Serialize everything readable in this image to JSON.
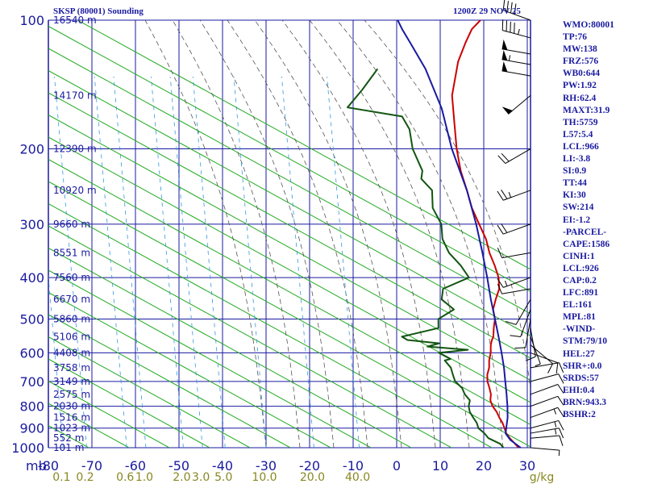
{
  "header": {
    "station": "SKSP (80001) Sounding",
    "time": "1200Z 29 NOV 25"
  },
  "stats": [
    "WMO:80001",
    "TP:76",
    "MW:138",
    "FRZ:576",
    "WB0:644",
    "PW:1.92",
    "RH:62.4",
    "MAXT:31.9",
    "TH:5759",
    "L57:5.4",
    "LCL:966",
    "LI:-3.8",
    "SI:0.9",
    "TT:44",
    "KI:30",
    "SW:214",
    "EI:-1.2",
    "-PARCEL-",
    "CAPE:1586",
    "CINH:1",
    "LCL:926",
    "CAP:0.2",
    "LFC:891",
    "EL:161",
    "MPL:81",
    "-WIND-",
    "STM:79/10",
    "HEL:27",
    "SHR+:0.0",
    "SRDS:57",
    "EHI:0.4",
    "BRN:943.3",
    "BSHR:2"
  ],
  "colors": {
    "grid": "#1a1aa0",
    "dry_adiabat": "#22aa22",
    "moist_adiabat": "#555555",
    "mixing_ratio": "#3399dd",
    "temperature": "#cc0000",
    "dewpoint": "#115511",
    "parcel": "#1a1aa0",
    "mixing_label": "#888822"
  },
  "chart_data": {
    "type": "line",
    "title": "SKSP (80001) Sounding",
    "x_axis": {
      "label": "",
      "range": [
        -80,
        30
      ],
      "ticks": [
        -80,
        -70,
        -60,
        -50,
        -40,
        -30,
        -20,
        -10,
        0,
        10,
        20,
        30
      ],
      "tick_labels": [
        "-80",
        "-70",
        "-60",
        "-50",
        "-40",
        "-30",
        "-20",
        "-10",
        "0",
        "10",
        "20",
        "30"
      ]
    },
    "y_axis": {
      "label": "mb",
      "scale": "log",
      "range": [
        1000,
        100
      ],
      "ticks": [
        100,
        200,
        300,
        400,
        500,
        600,
        700,
        800,
        900,
        1000
      ],
      "tick_labels": [
        "100",
        "200",
        "300",
        "400",
        "500",
        "600",
        "700",
        "800",
        "900",
        "1000"
      ]
    },
    "heights": [
      {
        "p": 100,
        "label": "16540 m"
      },
      {
        "p": 150,
        "label": "14170 m"
      },
      {
        "p": 200,
        "label": "12390 m"
      },
      {
        "p": 250,
        "label": "10920 m"
      },
      {
        "p": 300,
        "label": "9660 m"
      },
      {
        "p": 350,
        "label": "8551 m"
      },
      {
        "p": 400,
        "label": "7560 m"
      },
      {
        "p": 450,
        "label": "6670 m"
      },
      {
        "p": 500,
        "label": "5860 m"
      },
      {
        "p": 550,
        "label": "5106 m"
      },
      {
        "p": 600,
        "label": "4408 m"
      },
      {
        "p": 650,
        "label": "3758 m"
      },
      {
        "p": 700,
        "label": "3149 m"
      },
      {
        "p": 750,
        "label": "2575 m"
      },
      {
        "p": 800,
        "label": "2030 m"
      },
      {
        "p": 850,
        "label": "1516 m"
      },
      {
        "p": 900,
        "label": "1023 m"
      },
      {
        "p": 950,
        "label": "552 m"
      },
      {
        "p": 1000,
        "label": "101 m"
      }
    ],
    "mixing_ratio_labels": [
      {
        "value": "0.1",
        "t": -76.6
      },
      {
        "value": "0.2",
        "t": -71.2
      },
      {
        "value": "0.6",
        "t": -62.0
      },
      {
        "value": "1.0",
        "t": -57.6
      },
      {
        "value": "2.0",
        "t": -49.0
      },
      {
        "value": "3.0",
        "t": -44.6
      },
      {
        "value": "5.0",
        "t": -39.4
      },
      {
        "value": "10.0",
        "t": -30.0
      },
      {
        "value": "20.0",
        "t": -19.0
      },
      {
        "value": "40.0",
        "t": -8.6
      }
    ],
    "mixing_unit": "g/kg",
    "series": [
      {
        "name": "Temperature",
        "points": [
          [
            1000,
            28.0
          ],
          [
            975,
            26.0
          ],
          [
            950,
            23.9
          ],
          [
            925,
            22.0
          ],
          [
            900,
            20.5
          ],
          [
            875,
            18.9
          ],
          [
            850,
            17.0
          ],
          [
            825,
            15.2
          ],
          [
            800,
            13.0
          ],
          [
            775,
            11.2
          ],
          [
            750,
            10.0
          ],
          [
            725,
            8.3
          ],
          [
            700,
            6.4
          ],
          [
            675,
            4.9
          ],
          [
            650,
            3.8
          ],
          [
            625,
            2.2
          ],
          [
            600,
            0.9
          ],
          [
            575,
            -0.8
          ],
          [
            560,
            -1.6
          ],
          [
            550,
            -2.0
          ],
          [
            525,
            -3.8
          ],
          [
            500,
            -5.5
          ],
          [
            475,
            -8.0
          ],
          [
            450,
            -9.6
          ],
          [
            425,
            -11.1
          ],
          [
            400,
            -13.7
          ],
          [
            375,
            -17.2
          ],
          [
            350,
            -21.2
          ],
          [
            325,
            -25.0
          ],
          [
            300,
            -29.8
          ],
          [
            275,
            -35.0
          ],
          [
            250,
            -40.0
          ],
          [
            225,
            -45.7
          ],
          [
            200,
            -51.4
          ],
          [
            175,
            -57.3
          ],
          [
            150,
            -64.1
          ],
          [
            125,
            -70.1
          ],
          [
            113,
            -72.5
          ],
          [
            105,
            -74.0
          ],
          [
            100,
            -74.0
          ]
        ]
      },
      {
        "name": "Dewpoint",
        "points": [
          [
            1000,
            24.5
          ],
          [
            980,
            23.0
          ],
          [
            950,
            19.0
          ],
          [
            925,
            17.0
          ],
          [
            900,
            14.5
          ],
          [
            875,
            13.0
          ],
          [
            850,
            11.0
          ],
          [
            825,
            9.0
          ],
          [
            800,
            7.5
          ],
          [
            775,
            6.5
          ],
          [
            750,
            4.0
          ],
          [
            725,
            2.0
          ],
          [
            700,
            -1.0
          ],
          [
            675,
            -3.0
          ],
          [
            650,
            -5.0
          ],
          [
            625,
            -8.0
          ],
          [
            620,
            -7.0
          ],
          [
            600,
            -11.0
          ],
          [
            590,
            -5.0
          ],
          [
            580,
            -15.0
          ],
          [
            570,
            -13.0
          ],
          [
            560,
            -21.0
          ],
          [
            550,
            -23.0
          ],
          [
            525,
            -16.5
          ],
          [
            500,
            -18.5
          ],
          [
            475,
            -17.0
          ],
          [
            450,
            -22.0
          ],
          [
            425,
            -24.0
          ],
          [
            400,
            -20.5
          ],
          [
            375,
            -25.0
          ],
          [
            350,
            -30.5
          ],
          [
            325,
            -35.0
          ],
          [
            300,
            -38.5
          ],
          [
            275,
            -44.0
          ],
          [
            250,
            -48.0
          ],
          [
            235,
            -53.0
          ],
          [
            225,
            -54.5
          ],
          [
            200,
            -61.5
          ],
          [
            180,
            -66.5
          ],
          [
            168,
            -71.0
          ],
          [
            160,
            -85.5
          ],
          [
            145,
            -86.0
          ],
          [
            130,
            -87.0
          ]
        ]
      },
      {
        "name": "Parcel",
        "points": [
          [
            1000,
            28.5
          ],
          [
            960,
            24.5
          ],
          [
            926,
            21.9
          ],
          [
            900,
            20.9
          ],
          [
            850,
            18.9
          ],
          [
            800,
            16.4
          ],
          [
            750,
            13.6
          ],
          [
            700,
            10.5
          ],
          [
            650,
            7.2
          ],
          [
            600,
            3.4
          ],
          [
            550,
            -0.8
          ],
          [
            500,
            -5.5
          ],
          [
            450,
            -10.7
          ],
          [
            400,
            -16.3
          ],
          [
            350,
            -22.8
          ],
          [
            300,
            -30.5
          ],
          [
            250,
            -40.0
          ],
          [
            200,
            -52.5
          ],
          [
            161,
            -63.6
          ],
          [
            130,
            -76.0
          ],
          [
            115,
            -84.0
          ],
          [
            105,
            -90.0
          ],
          [
            100,
            -93.0
          ]
        ]
      }
    ],
    "wind_barbs": [
      {
        "p": 100,
        "dir": 290,
        "spd": 40
      },
      {
        "p": 110,
        "dir": 285,
        "spd": 45
      },
      {
        "p": 120,
        "dir": 280,
        "spd": 50
      },
      {
        "p": 127,
        "dir": 280,
        "spd": 55
      },
      {
        "p": 135,
        "dir": 280,
        "spd": 50
      },
      {
        "p": 150,
        "dir": 230,
        "spd": 50
      },
      {
        "p": 200,
        "dir": 240,
        "spd": 20
      },
      {
        "p": 250,
        "dir": 250,
        "spd": 25
      },
      {
        "p": 300,
        "dir": 250,
        "spd": 20
      },
      {
        "p": 350,
        "dir": 260,
        "spd": 10
      },
      {
        "p": 400,
        "dir": 250,
        "spd": 15
      },
      {
        "p": 425,
        "dir": 260,
        "spd": 10
      },
      {
        "p": 450,
        "dir": 210,
        "spd": 10
      },
      {
        "p": 475,
        "dir": 200,
        "spd": 10
      },
      {
        "p": 500,
        "dir": 190,
        "spd": 10
      },
      {
        "p": 525,
        "dir": 170,
        "spd": 10
      },
      {
        "p": 550,
        "dir": 160,
        "spd": 5
      },
      {
        "p": 575,
        "dir": 130,
        "spd": 10
      },
      {
        "p": 600,
        "dir": 110,
        "spd": 10
      },
      {
        "p": 650,
        "dir": 80,
        "spd": 10
      },
      {
        "p": 700,
        "dir": 75,
        "spd": 10
      },
      {
        "p": 750,
        "dir": 70,
        "spd": 10
      },
      {
        "p": 800,
        "dir": 70,
        "spd": 10
      },
      {
        "p": 850,
        "dir": 70,
        "spd": 15
      },
      {
        "p": 900,
        "dir": 75,
        "spd": 15
      },
      {
        "p": 925,
        "dir": 80,
        "spd": 15
      },
      {
        "p": 950,
        "dir": 85,
        "spd": 10
      },
      {
        "p": 1000,
        "dir": 95,
        "spd": 5
      }
    ]
  }
}
